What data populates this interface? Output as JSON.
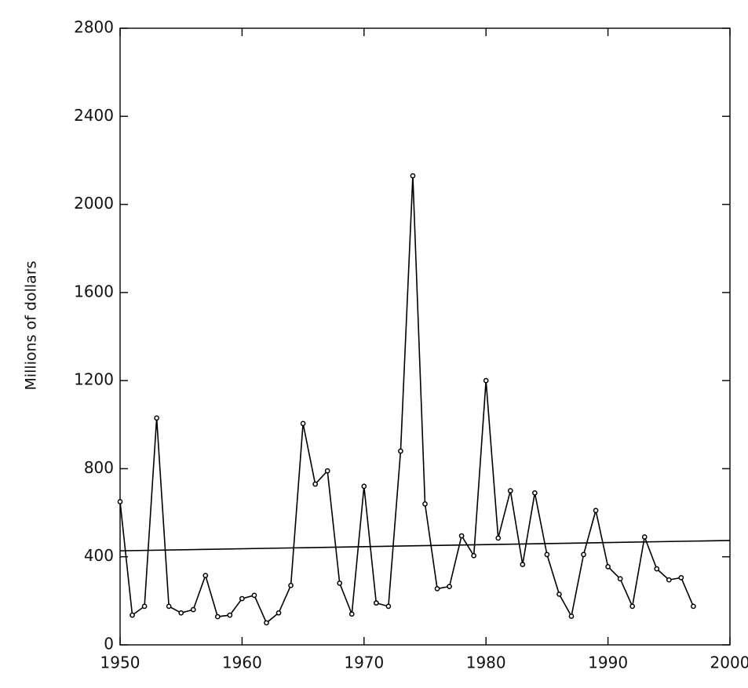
{
  "chart_data": {
    "type": "line",
    "y_label": "Millions of dollars",
    "xlim": [
      1950,
      2000
    ],
    "xticks": [
      1950,
      1960,
      1970,
      1980,
      1990,
      2000
    ],
    "ylim": [
      0,
      2800
    ],
    "yticks": [
      0,
      400,
      800,
      1200,
      1600,
      2000,
      2400,
      2800
    ],
    "grid": false,
    "series": [
      {
        "color": "#000000",
        "markers": true,
        "x": [
          1950,
          1951,
          1952,
          1953,
          1954,
          1955,
          1956,
          1957,
          1958,
          1959,
          1960,
          1961,
          1962,
          1963,
          1964,
          1965,
          1966,
          1967,
          1968,
          1969,
          1970,
          1971,
          1972,
          1973,
          1974,
          1975,
          1976,
          1977,
          1978,
          1979,
          1980,
          1981,
          1982,
          1983,
          1984,
          1985,
          1986,
          1987,
          1988,
          1989,
          1990,
          1991,
          1992,
          1993,
          1994,
          1995,
          1996,
          1997
        ],
        "values": [
          650,
          135,
          175,
          1030,
          175,
          145,
          160,
          315,
          128,
          135,
          210,
          225,
          100,
          145,
          270,
          1005,
          730,
          790,
          280,
          140,
          720,
          190,
          175,
          880,
          2130,
          640,
          255,
          265,
          495,
          405,
          1200,
          485,
          700,
          365,
          690,
          410,
          230,
          130,
          410,
          610,
          355,
          300,
          175,
          490,
          345,
          295,
          305,
          175
        ]
      },
      {
        "color": "#000000",
        "markers": false,
        "x": [
          1950,
          2000
        ],
        "values": [
          427,
          474
        ]
      }
    ]
  }
}
